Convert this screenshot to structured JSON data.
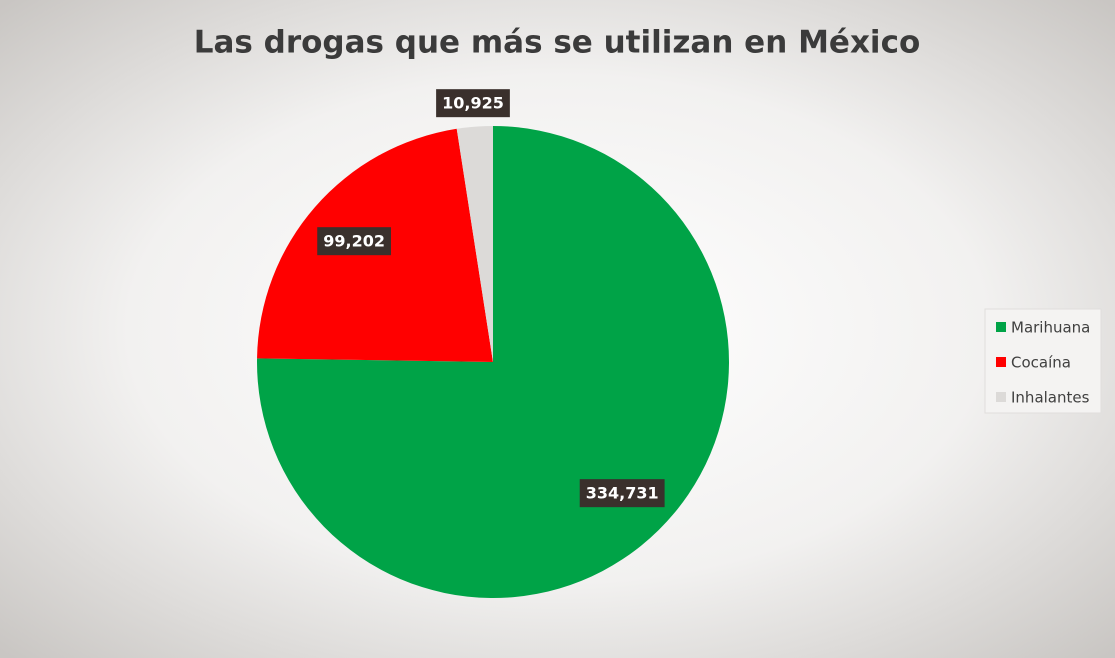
{
  "chart_data": {
    "type": "pie",
    "title": "Las drogas que más se utilizan en México",
    "categories": [
      "Marihuana",
      "Cocaína",
      "Inhalantes"
    ],
    "values": [
      334731,
      99202,
      10925
    ],
    "value_labels": [
      "334,731",
      "99,202",
      "10,925"
    ],
    "colors": [
      "#00a347",
      "#ff0000",
      "#dcdad8"
    ],
    "legend": "right"
  }
}
